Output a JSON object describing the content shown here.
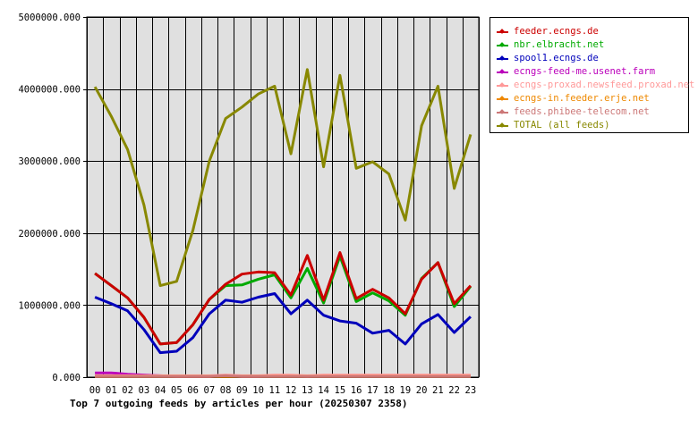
{
  "caption": "Top 7 outgoing feeds by articles per hour (20250307 2358)",
  "chart_data": {
    "type": "line",
    "title": "Top 7 outgoing feeds by articles per hour (20250307 2358)",
    "xlabel": "",
    "ylabel": "",
    "ylim": [
      0,
      5000000
    ],
    "grid": true,
    "legend_position": "right",
    "plot_background": "#e0e0e0",
    "categories": [
      "00",
      "01",
      "02",
      "03",
      "04",
      "05",
      "06",
      "07",
      "08",
      "09",
      "10",
      "11",
      "12",
      "13",
      "14",
      "15",
      "16",
      "17",
      "18",
      "19",
      "20",
      "21",
      "22",
      "23"
    ],
    "y_ticks": [
      "0.000",
      "1000000.000",
      "2000000.000",
      "3000000.000",
      "4000000.000",
      "5000000.000"
    ],
    "y_tick_values": [
      0,
      1000000,
      2000000,
      3000000,
      4000000,
      5000000
    ],
    "series": [
      {
        "name": "feeder.ecngs.de",
        "color": "#cc0000",
        "values": [
          1440000,
          1270000,
          1100000,
          830000,
          460000,
          480000,
          730000,
          1080000,
          1290000,
          1430000,
          1460000,
          1450000,
          1140000,
          1690000,
          1070000,
          1730000,
          1090000,
          1220000,
          1100000,
          880000,
          1360000,
          1590000,
          1020000,
          1270000
        ]
      },
      {
        "name": "nbr.elbracht.net",
        "color": "#00aa00",
        "values": [
          1440000,
          1270000,
          1100000,
          830000,
          460000,
          480000,
          730000,
          1080000,
          1270000,
          1280000,
          1360000,
          1420000,
          1100000,
          1510000,
          1030000,
          1680000,
          1050000,
          1170000,
          1060000,
          860000,
          1370000,
          1590000,
          980000,
          1260000
        ]
      },
      {
        "name": "spool1.ecngs.de",
        "color": "#0000bb",
        "values": [
          1110000,
          1020000,
          920000,
          660000,
          340000,
          360000,
          550000,
          880000,
          1070000,
          1040000,
          1110000,
          1160000,
          880000,
          1070000,
          860000,
          780000,
          750000,
          610000,
          650000,
          460000,
          740000,
          870000,
          620000,
          840000
        ]
      },
      {
        "name": "ecngs-feed-me.usenet.farm",
        "color": "#bb00bb",
        "values": [
          60000,
          60000,
          40000,
          30000,
          20000,
          10000,
          10000,
          10000,
          20000,
          10000,
          10000,
          20000,
          20000,
          10000,
          20000,
          20000,
          20000,
          20000,
          20000,
          20000,
          20000,
          20000,
          20000,
          20000
        ]
      },
      {
        "name": "ecngs-proxad.newsfeed.proxad.net",
        "color": "#ff9999",
        "values": [
          20000,
          20000,
          20000,
          20000,
          20000,
          20000,
          20000,
          20000,
          30000,
          20000,
          20000,
          30000,
          30000,
          20000,
          30000,
          30000,
          30000,
          30000,
          30000,
          30000,
          30000,
          30000,
          30000,
          30000
        ]
      },
      {
        "name": "ecngs-in.feeder.erje.net",
        "color": "#ee8800",
        "values": [
          10000,
          10000,
          10000,
          10000,
          10000,
          10000,
          10000,
          10000,
          10000,
          10000,
          10000,
          10000,
          10000,
          10000,
          10000,
          10000,
          10000,
          10000,
          10000,
          10000,
          10000,
          10000,
          10000,
          10000
        ]
      },
      {
        "name": "feeds.phibee-telecom.net",
        "color": "#cc7777",
        "values": [
          10000,
          10000,
          10000,
          10000,
          10000,
          10000,
          10000,
          10000,
          20000,
          10000,
          10000,
          10000,
          10000,
          10000,
          10000,
          10000,
          10000,
          10000,
          10000,
          10000,
          10000,
          10000,
          10000,
          10000
        ]
      },
      {
        "name": "TOTAL (all feeds)",
        "color": "#888800",
        "values": [
          4030000,
          3620000,
          3160000,
          2390000,
          1270000,
          1330000,
          2040000,
          3000000,
          3590000,
          3750000,
          3930000,
          4040000,
          3100000,
          4270000,
          2920000,
          4190000,
          2900000,
          2990000,
          2820000,
          2180000,
          3490000,
          4040000,
          2620000,
          3370000
        ]
      }
    ]
  }
}
